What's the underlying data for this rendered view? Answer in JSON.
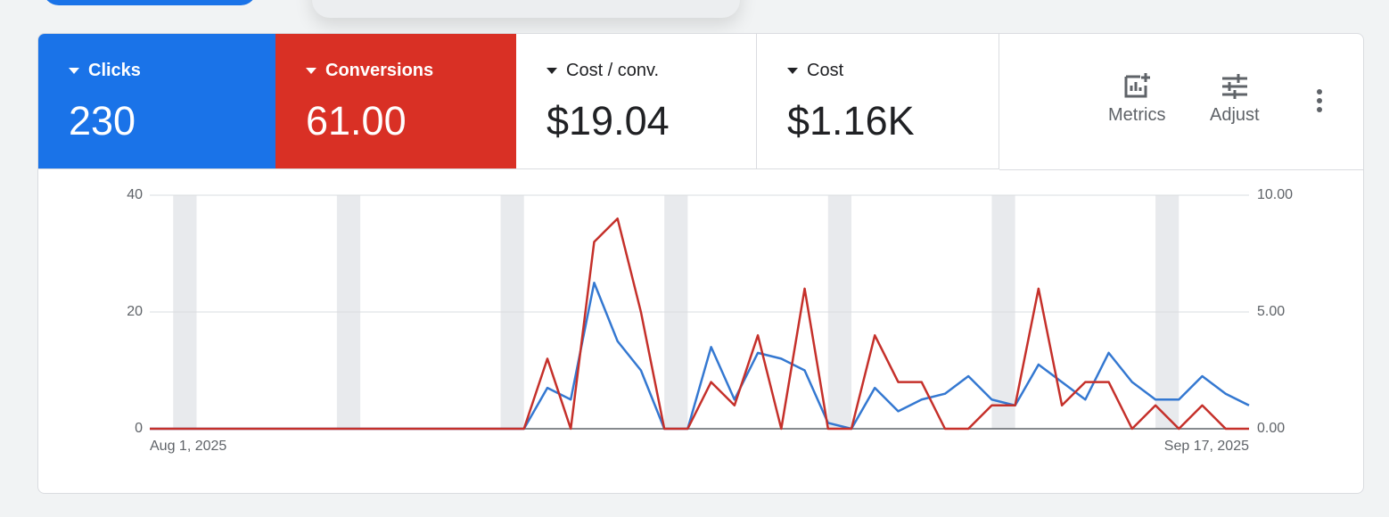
{
  "metrics": [
    {
      "name": "Clicks",
      "value": "230",
      "color": "#1a73e8"
    },
    {
      "name": "Conversions",
      "value": "61.00",
      "color": "#d93025"
    },
    {
      "name": "Cost / conv.",
      "value": "$19.04"
    },
    {
      "name": "Cost",
      "value": "$1.16K"
    }
  ],
  "toolbar": {
    "metrics": "Metrics",
    "adjust": "Adjust"
  },
  "chart_data": {
    "type": "line",
    "x": [
      "Aug 1, 2025",
      null,
      null,
      null,
      null,
      null,
      null,
      null,
      null,
      null,
      null,
      null,
      null,
      null,
      null,
      null,
      null,
      null,
      null,
      null,
      null,
      null,
      null,
      null,
      null,
      null,
      null,
      null,
      null,
      null,
      null,
      null,
      null,
      null,
      null,
      null,
      null,
      null,
      null,
      null,
      null,
      null,
      null,
      null,
      null,
      null,
      null,
      "Sep 17, 2025"
    ],
    "series": [
      {
        "color": "#3478d1",
        "values": [
          0,
          0,
          0,
          0,
          0,
          0,
          0,
          0,
          0,
          0,
          0,
          0,
          0,
          0,
          0,
          0,
          0,
          7,
          5,
          25,
          15,
          10,
          0,
          0,
          14,
          5,
          13,
          12,
          10,
          1,
          0,
          7,
          3,
          5,
          6,
          9,
          5,
          4,
          11,
          8,
          5,
          13,
          8,
          5,
          5,
          9,
          6,
          4
        ]
      },
      {
        "color": "#c5302a",
        "axis": "y2",
        "values": [
          0,
          0,
          0,
          0,
          0,
          0,
          0,
          0,
          0,
          0,
          0,
          0,
          0,
          0,
          0,
          0,
          0,
          3,
          0,
          8,
          9,
          5,
          0,
          0,
          2,
          1,
          4,
          0,
          6,
          0,
          0,
          4,
          2,
          2,
          0,
          0,
          1,
          1,
          6,
          1,
          2,
          2,
          0,
          1,
          0,
          1,
          0,
          0
        ]
      }
    ],
    "ylim": [
      0,
      40
    ],
    "yticks": [
      0,
      20,
      40
    ],
    "y2lim": [
      0,
      10
    ],
    "y2ticks": [
      {
        "value": 0,
        "label": "0.00"
      },
      {
        "value": 5,
        "label": "5.00"
      },
      {
        "value": 10,
        "label": "10.00"
      }
    ],
    "grid": true
  }
}
